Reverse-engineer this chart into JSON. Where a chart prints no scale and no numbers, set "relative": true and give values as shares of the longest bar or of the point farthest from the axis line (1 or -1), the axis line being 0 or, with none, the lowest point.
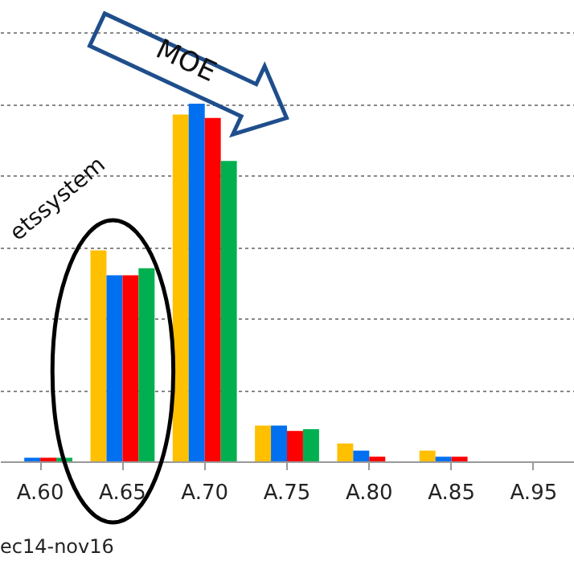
{
  "chart_data": {
    "type": "bar",
    "relative": true,
    "categories": [
      "A.60",
      "A.65",
      "A.70",
      "A.75",
      "A.80",
      "A.85",
      "A.95"
    ],
    "series": [
      {
        "color": "#ffc000",
        "values": [
          null,
          0.59,
          0.97,
          0.1,
          0.05,
          0.03,
          0
        ]
      },
      {
        "color": "#0070f0",
        "values": [
          0.01,
          0.52,
          1,
          0.1,
          0.03,
          0.013,
          0
        ]
      },
      {
        "color": "#ff0000",
        "values": [
          0.01,
          0.52,
          0.96,
          0.085,
          0.013,
          0.013,
          0
        ]
      },
      {
        "color": "#00b050",
        "values": [
          0.01,
          0.54,
          0.84,
          0.09,
          0,
          0,
          0
        ]
      }
    ],
    "annotations": [
      "MOE",
      "etssystem",
      "ec14-nov16"
    ],
    "grid": "y"
  }
}
